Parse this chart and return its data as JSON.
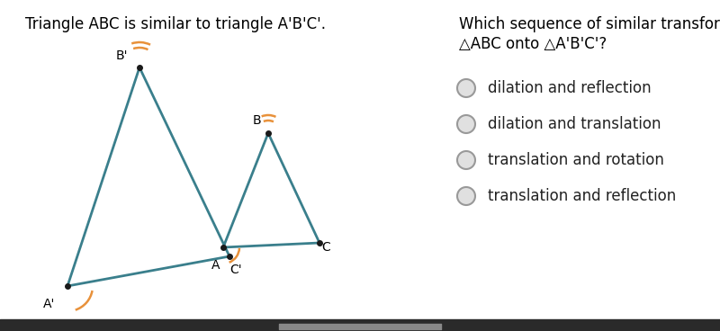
{
  "title_left": "Triangle ABC is similar to triangle A'B'C'.",
  "question_line1": "Which sequence of similar transfor",
  "question_line2": "△ABC onto △A'B'C'?",
  "options": [
    "dilation and reflection",
    "dilation and translation",
    "translation and rotation",
    "translation and reflection"
  ],
  "bg_color": "#ffffff",
  "triangle_color": "#3a7f8c",
  "angle_arc_color": "#e8913a",
  "dot_color": "#1a1a1a",
  "tri1": {
    "Ap": [
      75,
      318
    ],
    "Bp": [
      155,
      75
    ],
    "Cp": [
      255,
      285
    ],
    "labels": {
      "Ap": [
        55,
        338
      ],
      "Bp": [
        135,
        62
      ],
      "Cp": [
        262,
        300
      ]
    }
  },
  "tri2": {
    "A": [
      248,
      275
    ],
    "B": [
      298,
      148
    ],
    "C": [
      355,
      270
    ],
    "labels": {
      "A": [
        240,
        295
      ],
      "B": [
        285,
        134
      ],
      "C": [
        362,
        275
      ]
    }
  }
}
